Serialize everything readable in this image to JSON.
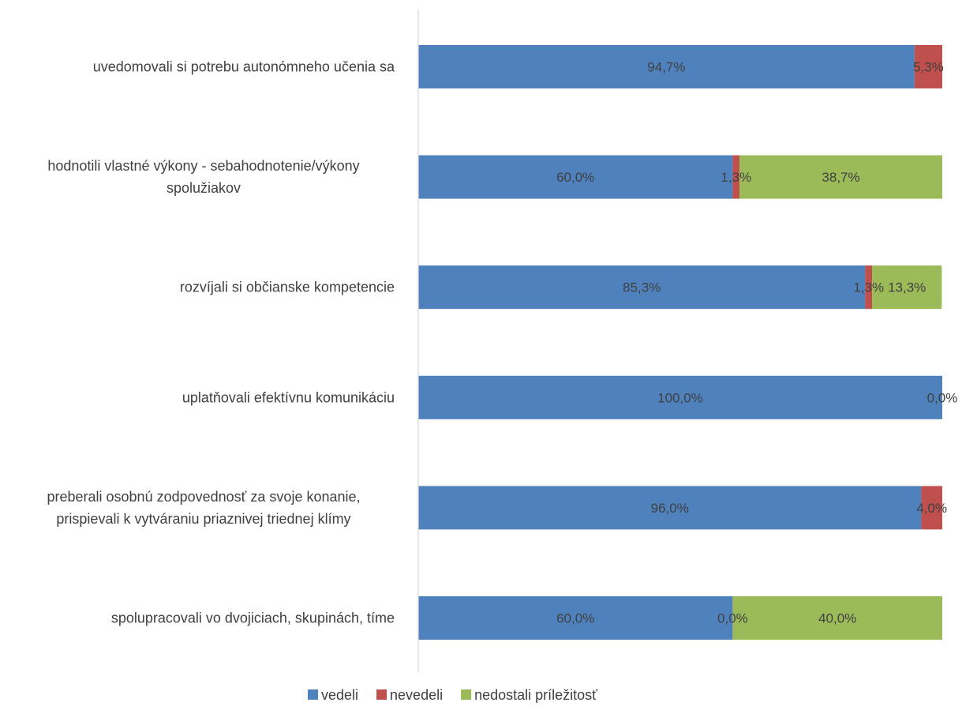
{
  "chart_data": {
    "type": "bar",
    "orientation": "horizontal",
    "stacked": "percent",
    "categories": [
      [
        "uvedomovali  si potrebu autonómneho učenia sa"
      ],
      [
        "hodnotili vlastné výkony - sebahodnotenie/výkony",
        "spolužiakov"
      ],
      [
        "rozvíjali si občianske kompetencie"
      ],
      [
        "uplatňovali efektívnu komunikáciu"
      ],
      [
        "preberali osobnú zodpovednosť za svoje konanie,",
        "prispievali k vytváraniu priaznivej triednej klímy"
      ],
      [
        "spolupracovali vo dvojiciach, skupinách, tíme"
      ]
    ],
    "series": [
      {
        "name": "vedeli",
        "color": "#4F81BD",
        "values": [
          94.7,
          60.0,
          85.3,
          100.0,
          96.0,
          60.0
        ],
        "labels": [
          "94,7%",
          "60,0%",
          "85,3%",
          "100,0%",
          "96,0%",
          "60,0%"
        ]
      },
      {
        "name": "nevedeli",
        "color": "#C0504D",
        "values": [
          5.3,
          1.3,
          1.3,
          0.0,
          4.0,
          0.0
        ],
        "labels": [
          "5,3%",
          "1,3%",
          "1,3%",
          "0,0%",
          "4,0%",
          "0,0%"
        ]
      },
      {
        "name": "nedostali príležitosť",
        "color": "#9BBB59",
        "values": [
          0,
          38.7,
          13.3,
          0,
          0,
          40.0
        ],
        "labels": [
          "",
          "38,7%",
          "13,3%",
          "",
          "",
          "40,0%"
        ]
      }
    ],
    "xlim": [
      0,
      100
    ],
    "grid": false,
    "legend": "bottom",
    "label_color": "#404040"
  }
}
